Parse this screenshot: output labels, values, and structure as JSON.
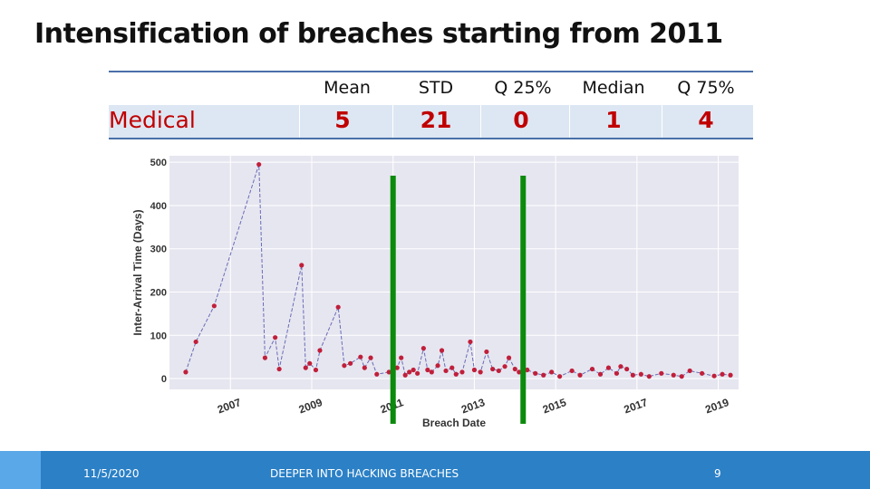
{
  "slide": {
    "title": "Intensification of breaches starting from 2011"
  },
  "stats_table": {
    "headers": [
      "Mean",
      "STD",
      "Q 25%",
      "Median",
      "Q 75%"
    ],
    "row_label": "Medical",
    "values": [
      "5",
      "21",
      "0",
      "1",
      "4"
    ]
  },
  "markers": {
    "year_a": "2011",
    "year_b": "2014"
  },
  "colors": {
    "stat_value": "#c00000",
    "marker_line": "#0b8a0b",
    "point": "#c01f3a",
    "line": "#6a6ab8",
    "footer": "#2b80c6"
  },
  "chart_data": {
    "type": "scatter",
    "title": "",
    "xlabel": "Breach Date",
    "ylabel": "Inter-Arrival Time (Days)",
    "x_ticks": [
      "2007",
      "2009",
      "2011",
      "2013",
      "2015",
      "2017",
      "2019"
    ],
    "y_ticks": [
      0,
      100,
      200,
      300,
      400,
      500
    ],
    "xlim": [
      2005.5,
      2019.5
    ],
    "ylim": [
      -25,
      515
    ],
    "vlines": [
      2011.0,
      2014.2
    ],
    "points": [
      [
        2005.9,
        15
      ],
      [
        2006.15,
        85
      ],
      [
        2006.6,
        168
      ],
      [
        2007.7,
        495
      ],
      [
        2007.85,
        48
      ],
      [
        2008.1,
        95
      ],
      [
        2008.2,
        22
      ],
      [
        2008.75,
        262
      ],
      [
        2008.85,
        25
      ],
      [
        2008.95,
        35
      ],
      [
        2009.1,
        20
      ],
      [
        2009.2,
        65
      ],
      [
        2009.65,
        165
      ],
      [
        2009.8,
        30
      ],
      [
        2009.95,
        35
      ],
      [
        2010.2,
        50
      ],
      [
        2010.3,
        25
      ],
      [
        2010.45,
        48
      ],
      [
        2010.6,
        10
      ],
      [
        2010.9,
        15
      ],
      [
        2011.0,
        18
      ],
      [
        2011.1,
        25
      ],
      [
        2011.2,
        48
      ],
      [
        2011.3,
        8
      ],
      [
        2011.4,
        15
      ],
      [
        2011.5,
        20
      ],
      [
        2011.6,
        12
      ],
      [
        2011.75,
        70
      ],
      [
        2011.85,
        20
      ],
      [
        2011.95,
        15
      ],
      [
        2012.1,
        30
      ],
      [
        2012.2,
        65
      ],
      [
        2012.3,
        18
      ],
      [
        2012.45,
        25
      ],
      [
        2012.55,
        10
      ],
      [
        2012.7,
        15
      ],
      [
        2012.9,
        85
      ],
      [
        2013.0,
        20
      ],
      [
        2013.15,
        15
      ],
      [
        2013.3,
        62
      ],
      [
        2013.45,
        22
      ],
      [
        2013.6,
        18
      ],
      [
        2013.75,
        28
      ],
      [
        2013.85,
        48
      ],
      [
        2014.0,
        22
      ],
      [
        2014.1,
        15
      ],
      [
        2014.3,
        20
      ],
      [
        2014.5,
        12
      ],
      [
        2014.7,
        8
      ],
      [
        2014.9,
        15
      ],
      [
        2015.1,
        5
      ],
      [
        2015.4,
        18
      ],
      [
        2015.6,
        8
      ],
      [
        2015.9,
        22
      ],
      [
        2016.1,
        10
      ],
      [
        2016.3,
        25
      ],
      [
        2016.5,
        12
      ],
      [
        2016.6,
        28
      ],
      [
        2016.75,
        22
      ],
      [
        2016.9,
        8
      ],
      [
        2017.1,
        10
      ],
      [
        2017.3,
        5
      ],
      [
        2017.6,
        12
      ],
      [
        2017.9,
        8
      ],
      [
        2018.1,
        5
      ],
      [
        2018.3,
        18
      ],
      [
        2018.6,
        12
      ],
      [
        2018.9,
        6
      ],
      [
        2019.1,
        10
      ],
      [
        2019.3,
        8
      ]
    ]
  },
  "footer": {
    "date": "11/5/2020",
    "center_text": "DEEPER INTO HACKING BREACHES",
    "page_number": "9"
  }
}
